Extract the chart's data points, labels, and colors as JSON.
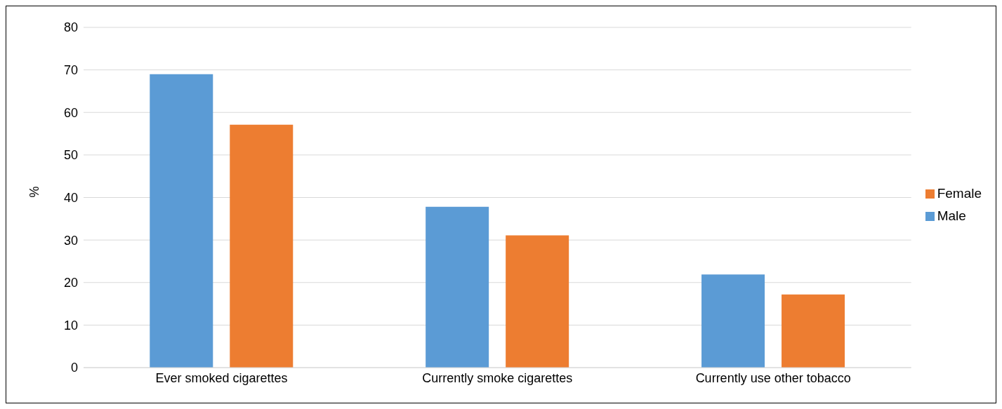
{
  "chart_data": {
    "type": "bar",
    "ylabel": "%",
    "categories": [
      "Ever smoked cigarettes",
      "Currently smoke cigarettes",
      "Currently use other tobacco"
    ],
    "series": [
      {
        "name": "Male",
        "color": "#5b9bd5",
        "values": [
          69,
          37.8,
          21.9
        ]
      },
      {
        "name": "Female",
        "color": "#ed7d31",
        "values": [
          57.1,
          31.1,
          17.2
        ]
      }
    ],
    "ylim": [
      0,
      80
    ],
    "yticks": [
      0,
      10,
      20,
      30,
      40,
      50,
      60,
      70,
      80
    ],
    "grid": "y",
    "legend": "right"
  }
}
